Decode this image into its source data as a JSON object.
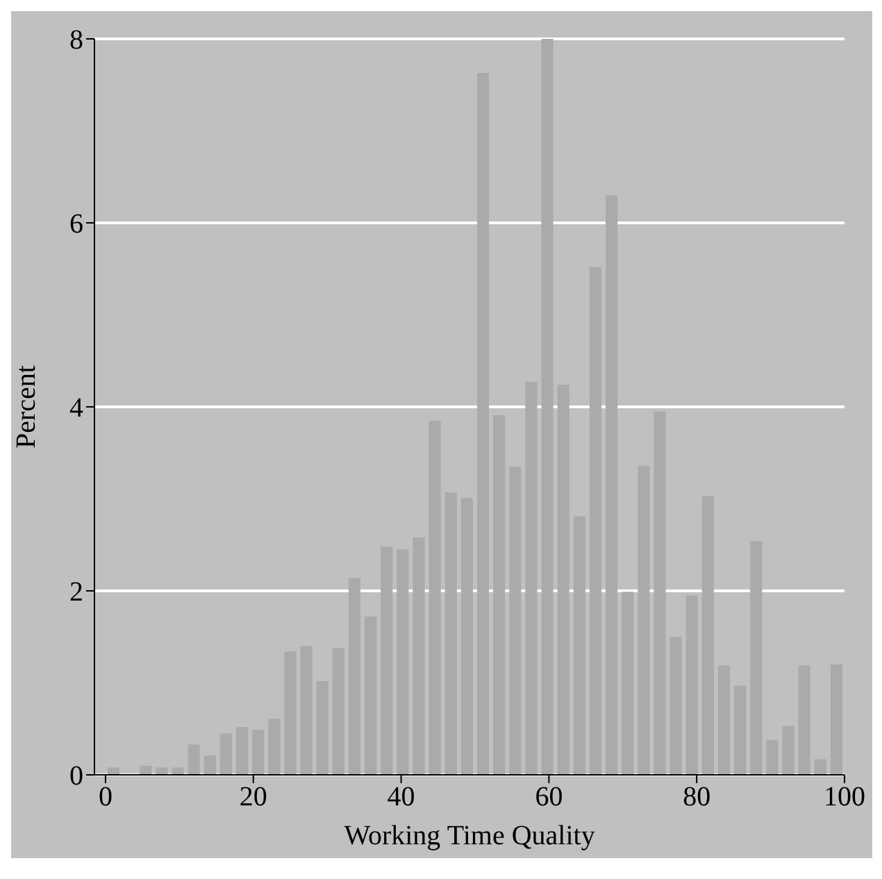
{
  "chart_data": {
    "type": "histogram",
    "xlabel": "Working Time Quality",
    "ylabel": "Percent",
    "color": "#aaaaaa",
    "bins": [
      0,
      2.17,
      4.35,
      6.52,
      8.7,
      10.87,
      13.04,
      15.22,
      17.39,
      19.57,
      21.74,
      23.91,
      26.09,
      28.26,
      30.43,
      32.61,
      34.78,
      36.96,
      39.13,
      41.3,
      43.48,
      45.65,
      47.83,
      50,
      52.17,
      54.35,
      56.52,
      58.7,
      60.87,
      63.04,
      65.22,
      67.39,
      69.57,
      71.74,
      73.91,
      76.09,
      78.26,
      80.43,
      82.61,
      84.78,
      86.96,
      89.13,
      91.3,
      93.48,
      95.65,
      97.83,
      100
    ],
    "values": [
      0.08,
      0,
      0.1,
      0.08,
      0.08,
      0.33,
      0.21,
      0.45,
      0.52,
      0.49,
      0.61,
      1.34,
      1.4,
      1.02,
      1.38,
      2.14,
      1.72,
      2.48,
      2.45,
      2.58,
      3.85,
      3.07,
      3.01,
      7.63,
      3.91,
      3.35,
      4.27,
      8.0,
      4.24,
      2.81,
      5.52,
      6.3,
      1.99,
      3.36,
      3.95,
      1.5,
      1.95,
      3.03,
      1.19,
      0.97,
      2.54,
      0.38,
      0.53,
      1.19,
      0.17,
      1.2
    ],
    "xlim": [
      -1.5,
      100
    ],
    "xticks": [
      0,
      20,
      40,
      60,
      80,
      100
    ],
    "ylim": [
      0,
      8
    ],
    "yticks": [
      0,
      2,
      4,
      6,
      8
    ],
    "grid": "y"
  }
}
